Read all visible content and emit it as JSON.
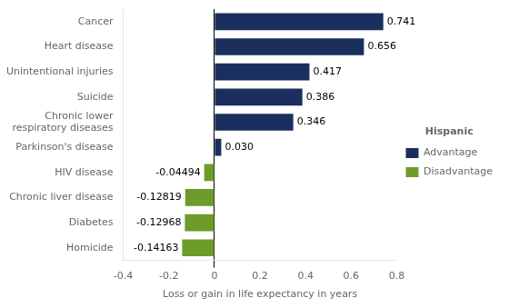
{
  "chart_data": {
    "type": "bar",
    "orientation": "horizontal",
    "categories": [
      "Cancer",
      "Heart disease",
      "Unintentional injuries",
      "Suicide",
      "Chronic lower\nrespiratory diseases",
      "Parkinson's disease",
      "HIV disease",
      "Chronic liver disease",
      "Diabetes",
      "Homicide"
    ],
    "series": [
      {
        "name": "Advantage",
        "color": "#1b2f5e",
        "values": [
          0.741,
          0.656,
          0.417,
          0.386,
          0.346,
          0.03,
          null,
          null,
          null,
          null
        ],
        "value_labels": [
          "0.741",
          "0.656",
          "0.417",
          "0.386",
          "0.346",
          "0.030",
          null,
          null,
          null,
          null
        ]
      },
      {
        "name": "Disadvantage",
        "color": "#6d9c2a",
        "values": [
          null,
          null,
          null,
          null,
          null,
          null,
          -0.04494,
          -0.12819,
          -0.12968,
          -0.14163
        ],
        "value_labels": [
          null,
          null,
          null,
          null,
          null,
          null,
          "-0.04494",
          "-0.12819",
          "-0.12968",
          "-0.14163"
        ]
      }
    ],
    "xlabel": "Loss or gain in life expectancy in years",
    "xlim": [
      -0.4,
      0.8
    ],
    "xticks": [
      -0.4,
      -0.2,
      0,
      0.2,
      0.4,
      0.6,
      0.8
    ],
    "grid": false,
    "legend": "right",
    "legend_title": "Hispanic",
    "data_labels": true
  }
}
